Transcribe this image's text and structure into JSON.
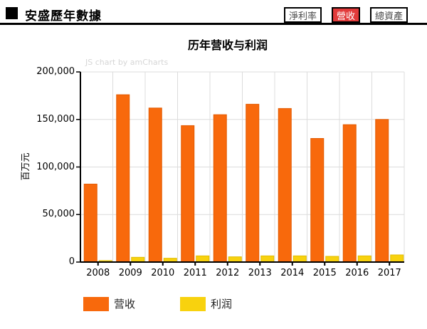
{
  "header": {
    "title": "安盛歷年數據",
    "buttons": [
      {
        "label": "淨利率",
        "active": false
      },
      {
        "label": "營收",
        "active": true
      },
      {
        "label": "總資產",
        "active": false
      }
    ],
    "active_button_color": "#E23B3B"
  },
  "chart": {
    "title": "历年营收与利润",
    "watermark": "JS chart by amCharts",
    "y_axis_title": "百万元"
  },
  "chart_data": {
    "type": "bar",
    "title": "历年营收与利润",
    "categories": [
      "2008",
      "2009",
      "2010",
      "2011",
      "2012",
      "2013",
      "2014",
      "2015",
      "2016",
      "2017"
    ],
    "series": [
      {
        "name": "营收",
        "color": "#F8690C",
        "border": "#E25A00",
        "values": [
          82000,
          176000,
          162000,
          143500,
          155000,
          166000,
          161500,
          130000,
          144500,
          150000
        ]
      },
      {
        "name": "利润",
        "color": "#F8D20E",
        "border": "#E0BC00",
        "values": [
          1500,
          5000,
          4000,
          6500,
          5500,
          6500,
          6500,
          6000,
          6500,
          7500
        ]
      }
    ],
    "xlabel": "",
    "ylabel": "百万元",
    "ylim": [
      0,
      200000
    ],
    "y_ticks": [
      0,
      50000,
      100000,
      150000,
      200000
    ],
    "grid": true,
    "legend_position": "bottom",
    "grid_color": "#DCDCDC",
    "axis_color": "#000000"
  }
}
